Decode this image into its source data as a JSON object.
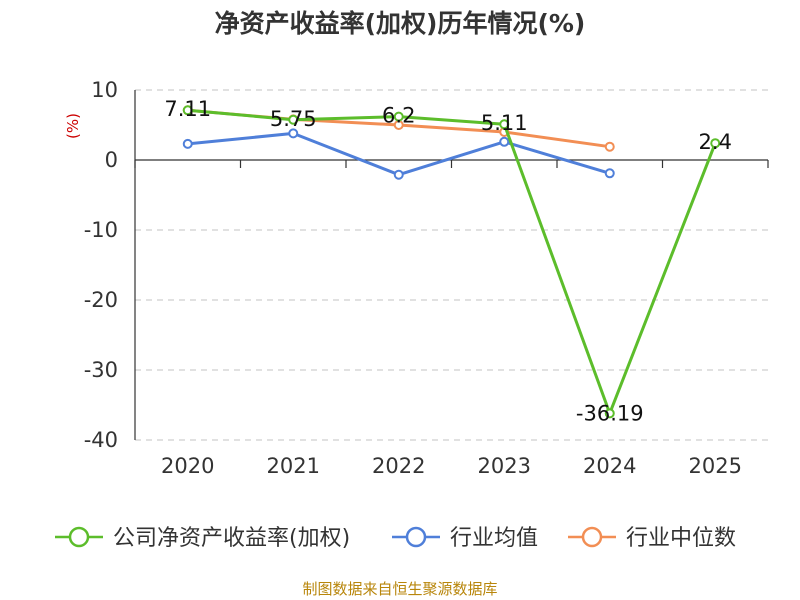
{
  "page": {
    "title": "净资产收益率(加权)历年情况(%)",
    "source": "制图数据来自恒生聚源数据库"
  },
  "chart_data": {
    "type": "line",
    "title": "净资产收益率(加权)历年情况(%)",
    "ylabel": "(%)",
    "xlabel": "",
    "categories": [
      "2020",
      "2021",
      "2022",
      "2023",
      "2024",
      "2025"
    ],
    "ylim": [
      -40,
      10
    ],
    "yticks": [
      10,
      0,
      -10,
      -20,
      -30,
      -40
    ],
    "grid": true,
    "legend_position": "bottom",
    "series": [
      {
        "name": "公司净资产收益率(加权)",
        "color": "#5cbd2b",
        "values": [
          7.11,
          5.75,
          6.2,
          5.11,
          -36.19,
          2.4
        ],
        "labels": [
          "7.11",
          "5.75",
          "6.2",
          "5.11",
          "-36.19",
          "2.4"
        ]
      },
      {
        "name": "行业均值",
        "color": "#4f7fd9",
        "values": [
          2.3,
          3.8,
          -2.1,
          2.6,
          -1.9,
          null
        ]
      },
      {
        "name": "行业中位数",
        "color": "#f28e54",
        "values": [
          7.1,
          5.8,
          5.0,
          4.0,
          1.9,
          null
        ]
      }
    ]
  }
}
